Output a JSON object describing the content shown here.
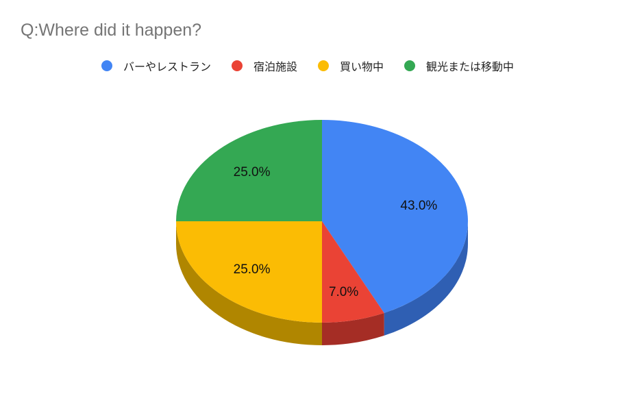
{
  "chart_data": {
    "type": "pie",
    "style": "3d",
    "title": "Q:Where did it happen?",
    "legend_position": "top",
    "categories": [
      "バーやレストラン",
      "宿泊施設",
      "買い物中",
      "観光または移動中"
    ],
    "values": [
      43.0,
      7.0,
      25.0,
      25.0
    ],
    "data_labels": [
      "43.0%",
      "7.0%",
      "25.0%",
      "25.0%"
    ],
    "colors": [
      "#4285f4",
      "#ea4335",
      "#fbbc04",
      "#34a853"
    ],
    "side_colors": [
      "#2f5fb3",
      "#a52d25",
      "#b08600",
      "#247a3b"
    ]
  }
}
